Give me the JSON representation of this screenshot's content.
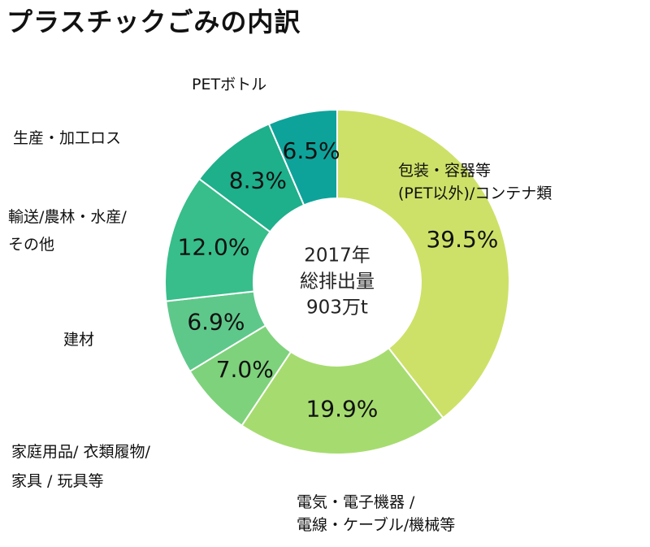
{
  "chart_data": {
    "type": "pie",
    "title": "プラスチックごみの内訳",
    "center_label": [
      "2017年",
      "総排出量",
      "903万t"
    ],
    "categories": [
      {
        "name_lines": [
          "包装・容器等",
          "(PET以外)/コンテナ類"
        ],
        "value": 39.5,
        "label": "39.5%",
        "color": "#cde168"
      },
      {
        "name_lines": [
          "電気・電子機器 /",
          "電線・ケーブル/機械等"
        ],
        "value": 19.9,
        "label": "19.9%",
        "color": "#a6dc6f"
      },
      {
        "name_lines": [
          "家庭用品/ 衣類履物/",
          "家具 / 玩具等"
        ],
        "value": 7.0,
        "label": "7.0%",
        "color": "#7ed27b"
      },
      {
        "name_lines": [
          "建材"
        ],
        "value": 6.9,
        "label": "6.9%",
        "color": "#5ec88a"
      },
      {
        "name_lines": [
          "輸送/農林・水産/",
          "その他"
        ],
        "value": 12.0,
        "label": "12.0%",
        "color": "#37be8a"
      },
      {
        "name_lines": [
          "生産・加工ロス"
        ],
        "value": 8.3,
        "label": "8.3%",
        "color": "#1eaf8b"
      },
      {
        "name_lines": [
          "PETボトル"
        ],
        "value": 6.5,
        "label": "6.5%",
        "color": "#0ea39a"
      }
    ]
  }
}
